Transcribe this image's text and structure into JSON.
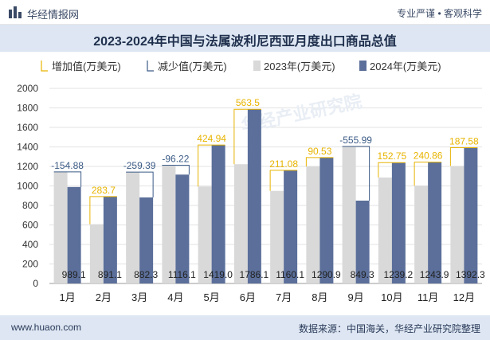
{
  "header": {
    "site_name": "华经情报网",
    "tagline": "专业严谨 • 客观科学"
  },
  "footer": {
    "url": "www.huaon.com",
    "source": "数据来源：中国海关，华经产业研究院整理"
  },
  "colors": {
    "increase": "#e8b400",
    "decrease": "#3b5b86",
    "series_2023": "#d9d9d9",
    "series_2024": "#5b6f9a",
    "title_band": "#dde6f2"
  },
  "chart_data": {
    "type": "bar",
    "title": "2023-2024年中国与法属波利尼西亚月度出口商品总值",
    "categories": [
      "1月",
      "2月",
      "3月",
      "4月",
      "5月",
      "6月",
      "7月",
      "8月",
      "9月",
      "10月",
      "11月",
      "12月"
    ],
    "legend": [
      "增加值(万美元)",
      "减少值(万美元)",
      "2023年(万美元)",
      "2024年(万美元)"
    ],
    "legend_position": "top",
    "series": [
      {
        "name": "2023年(万美元)",
        "values": [
          1143.98,
          607.4,
          1141.69,
          1212.32,
          994.06,
          1222.6,
          949.02,
          1200.37,
          1405.29,
          1086.45,
          1003.06,
          1204.72
        ]
      },
      {
        "name": "2024年(万美元)",
        "values": [
          989.1,
          891.1,
          882.3,
          1116.1,
          1419.0,
          1786.1,
          1160.1,
          1290.9,
          849.3,
          1239.2,
          1243.9,
          1392.3
        ]
      }
    ],
    "change_labels": [
      "-154.88",
      "283.7",
      "-259.39",
      "-96.22",
      "424.94",
      "563.5",
      "211.08",
      "90.53",
      "-555.99",
      "152.75",
      "240.86",
      "187.58"
    ],
    "value_labels": [
      "989.1",
      "891.1",
      "882.3",
      "1116.1",
      "1419.0",
      "1786.1",
      "1160.1",
      "1290.9",
      "849.3",
      "1239.2",
      "1243.9",
      "1392.3"
    ],
    "ylim": [
      0,
      2000
    ],
    "yticks": [
      0,
      200,
      400,
      600,
      800,
      1000,
      1200,
      1400,
      1600,
      1800,
      2000
    ],
    "grid": true,
    "watermark": "华经产业研究院"
  }
}
